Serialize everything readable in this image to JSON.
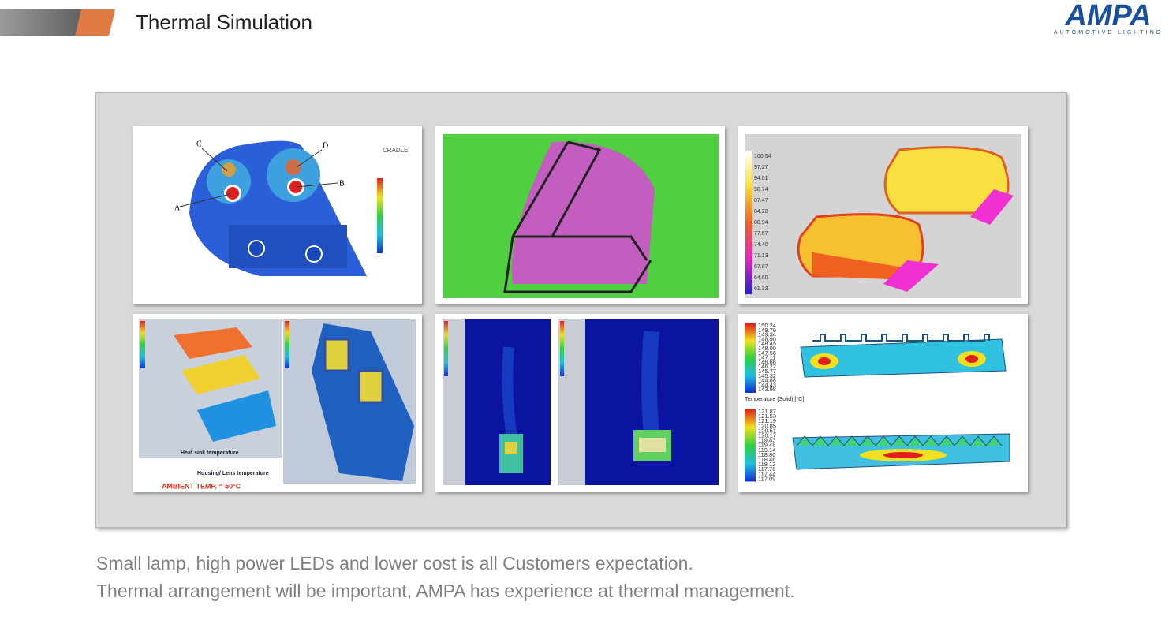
{
  "header": {
    "title": "Thermal Simulation"
  },
  "logo": {
    "name": "AMPA",
    "tagline": "AUTOMOTIVE LIGHTING"
  },
  "panels": {
    "lamp_points": {
      "labels": [
        "A",
        "B",
        "C",
        "D"
      ],
      "brand": "CRADLE"
    },
    "lamp_pair": {
      "legend": [
        "100.54",
        "97.27",
        "94.01",
        "90.74",
        "87.47",
        "84.20",
        "80.94",
        "77.67",
        "74.40",
        "71.13",
        "67.87",
        "64.60",
        "61.33"
      ]
    },
    "heat_sink": {
      "captions": [
        "Heat sink temperature",
        "Housing/ Lens temperature",
        "AMBIENT TEMP. = 50°C"
      ]
    },
    "module": {
      "legend_top": {
        "values": [
          "150.24",
          "149.79",
          "149.34",
          "148.90",
          "148.45",
          "148.00",
          "147.56",
          "147.11",
          "146.66",
          "146.22",
          "145.77",
          "145.32",
          "144.88",
          "144.43",
          "143.98"
        ],
        "caption": "Temperature (Solid) [°C]"
      },
      "legend_bottom": {
        "values": [
          "121.87",
          "121.53",
          "121.19",
          "120.85",
          "120.51",
          "120.17",
          "119.83",
          "119.48",
          "119.14",
          "118.80",
          "118.46",
          "118.12",
          "117.78",
          "117.44",
          "117.09"
        ]
      }
    }
  },
  "body": {
    "lines": [
      "Small lamp, high power LEDs and lower cost is all Customers expectation.",
      "Thermal arrangement will be important, AMPA has experience at thermal management."
    ]
  }
}
